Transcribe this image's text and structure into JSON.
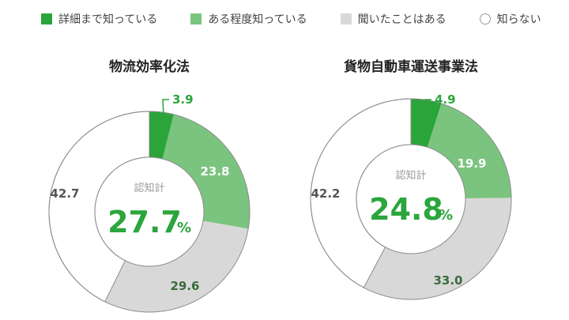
{
  "colors": {
    "detail": "#2ba43a",
    "some": "#7bc47f",
    "heard": "#d8d8d8",
    "unknown": "#ffffff",
    "label_green": "#2aa63c",
    "label_dark": "#3c6a3c",
    "label_gray": "#555555"
  },
  "legend": [
    {
      "label": "詳細まで知っている",
      "color": "#2ba43a",
      "shape": "square"
    },
    {
      "label": "ある程度知っている",
      "color": "#7bc47f",
      "shape": "square"
    },
    {
      "label": "聞いたことはある",
      "color": "#d8d8d8",
      "shape": "square"
    },
    {
      "label": "知らない",
      "color": "#ffffff",
      "shape": "circle"
    }
  ],
  "chart_data": [
    {
      "type": "pie",
      "title": "物流効率化法",
      "center_label": "認知計",
      "center_value": "27.7",
      "center_unit": "%",
      "categories": [
        "詳細まで知っている",
        "ある程度知っている",
        "聞いたことはある",
        "知らない"
      ],
      "values": [
        3.9,
        23.8,
        29.6,
        42.7
      ],
      "value_labels": [
        "3.9",
        "23.8",
        "29.6",
        "42.7"
      ]
    },
    {
      "type": "pie",
      "title": "貨物自動車運送事業法",
      "center_label": "認知計",
      "center_value": "24.8",
      "center_unit": "%",
      "categories": [
        "詳細まで知っている",
        "ある程度知っている",
        "聞いたことはある",
        "知らない"
      ],
      "values": [
        4.9,
        19.9,
        33.0,
        42.2
      ],
      "value_labels": [
        "4.9",
        "19.9",
        "33.0",
        "42.2"
      ]
    }
  ]
}
